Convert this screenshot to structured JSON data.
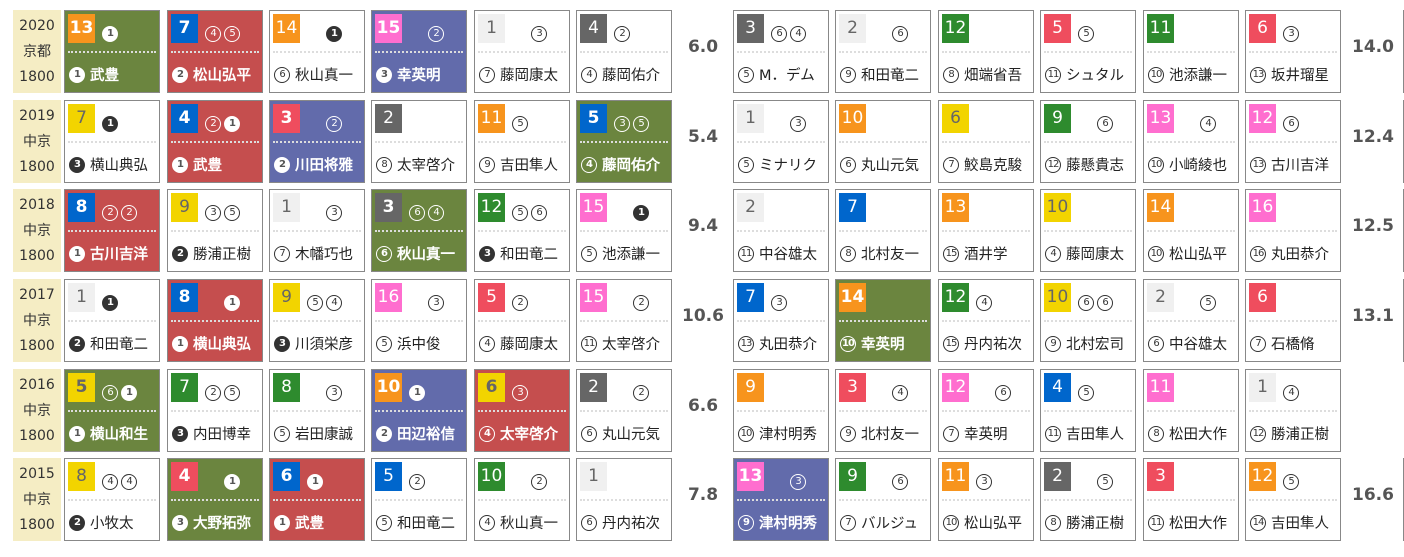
{
  "colors": {
    "white": "#f0f0f0",
    "black": "#666666",
    "red": "#ef4d5e",
    "blue": "#0066cc",
    "yellow": "#f2d400",
    "green": "#2e8b2e",
    "orange": "#f7941d",
    "pink": "#ff6ecf",
    "hl_green": "#6b853f",
    "hl_red": "#c54e4e",
    "hl_blue": "#626bab",
    "year_bg": "#f5edc4"
  },
  "rows": [
    {
      "year": "2020",
      "venue": "京都",
      "distance": "1800",
      "odds_left": "6.0",
      "odds_right": "14.0",
      "partial": true,
      "left": [
        {
          "n": "13",
          "w": "orange",
          "m": [
            1,
            null
          ],
          "p": 1,
          "j": "武豊",
          "hl": "green"
        },
        {
          "n": "7",
          "w": "blue",
          "m": [
            4,
            5
          ],
          "p": 2,
          "j": "松山弘平",
          "hl": "red"
        },
        {
          "n": "14",
          "w": "orange",
          "m": [
            null,
            1
          ],
          "p": 6,
          "j": "秋山真一",
          "hl": null
        },
        {
          "n": "15",
          "w": "pink",
          "m": [
            null,
            2
          ],
          "p": 3,
          "j": "幸英明",
          "hl": "blue"
        },
        {
          "n": "1",
          "w": "white",
          "m": [
            null,
            3
          ],
          "p": 7,
          "j": "藤岡康太",
          "hl": null
        },
        {
          "n": "4",
          "w": "black",
          "m": [
            2,
            null
          ],
          "p": 4,
          "j": "藤岡佑介",
          "hl": null
        }
      ],
      "right": [
        {
          "n": "3",
          "w": "black",
          "m": [
            6,
            4
          ],
          "p": 5,
          "j": "M．デム",
          "hl": null
        },
        {
          "n": "2",
          "w": "white",
          "m": [
            null,
            6
          ],
          "p": 9,
          "j": "和田竜二",
          "hl": null
        },
        {
          "n": "12",
          "w": "green",
          "m": [
            null,
            null
          ],
          "p": 8,
          "j": "畑端省吾",
          "hl": null
        },
        {
          "n": "5",
          "w": "red",
          "m": [
            5,
            null
          ],
          "p": 11,
          "j": "シュタル",
          "hl": null
        },
        {
          "n": "11",
          "w": "green",
          "m": [
            null,
            null
          ],
          "p": 10,
          "j": "池添謙一",
          "hl": null
        },
        {
          "n": "6",
          "w": "red",
          "m": [
            3,
            null
          ],
          "p": 13,
          "j": "坂井瑠星",
          "hl": null
        }
      ]
    },
    {
      "year": "2019",
      "venue": "中京",
      "distance": "1800",
      "odds_left": "5.4",
      "odds_right": "12.4",
      "partial": true,
      "left": [
        {
          "n": "7",
          "w": "yellow",
          "m": [
            1,
            null
          ],
          "p": 3,
          "j": "横山典弘",
          "hl": null
        },
        {
          "n": "4",
          "w": "blue",
          "m": [
            2,
            1
          ],
          "p": 1,
          "j": "武豊",
          "hl": "red"
        },
        {
          "n": "3",
          "w": "red",
          "m": [
            null,
            2
          ],
          "p": 2,
          "j": "川田将雅",
          "hl": "blue"
        },
        {
          "n": "2",
          "w": "black",
          "m": [
            null,
            null
          ],
          "p": 8,
          "j": "太宰啓介",
          "hl": null
        },
        {
          "n": "11",
          "w": "orange",
          "m": [
            5,
            null
          ],
          "p": 9,
          "j": "吉田隼人",
          "hl": null
        },
        {
          "n": "5",
          "w": "blue",
          "m": [
            3,
            5
          ],
          "p": 4,
          "j": "藤岡佑介",
          "hl": "green"
        }
      ],
      "right": [
        {
          "n": "1",
          "w": "white",
          "m": [
            null,
            3
          ],
          "p": 5,
          "j": "ミナリク",
          "hl": null
        },
        {
          "n": "10",
          "w": "orange",
          "m": [
            null,
            null
          ],
          "p": 6,
          "j": "丸山元気",
          "hl": null
        },
        {
          "n": "6",
          "w": "yellow",
          "m": [
            null,
            null
          ],
          "p": 7,
          "j": "鮫島克駿",
          "hl": null
        },
        {
          "n": "9",
          "w": "green",
          "m": [
            null,
            6
          ],
          "p": 12,
          "j": "藤懸貴志",
          "hl": null
        },
        {
          "n": "13",
          "w": "pink",
          "m": [
            null,
            4
          ],
          "p": 10,
          "j": "小崎綾也",
          "hl": null
        },
        {
          "n": "12",
          "w": "pink",
          "m": [
            6,
            null
          ],
          "p": 13,
          "j": "古川吉洋",
          "hl": null
        }
      ]
    },
    {
      "year": "2018",
      "venue": "中京",
      "distance": "1800",
      "odds_left": "9.4",
      "odds_right": "12.5",
      "partial": true,
      "left": [
        {
          "n": "8",
          "w": "blue",
          "m": [
            2,
            2
          ],
          "p": 1,
          "j": "古川吉洋",
          "hl": "red"
        },
        {
          "n": "9",
          "w": "yellow",
          "m": [
            3,
            5
          ],
          "p": 2,
          "j": "勝浦正樹",
          "hl": null
        },
        {
          "n": "1",
          "w": "white",
          "m": [
            null,
            3
          ],
          "p": 7,
          "j": "木幡巧也",
          "hl": null
        },
        {
          "n": "3",
          "w": "black",
          "m": [
            6,
            4
          ],
          "p": 6,
          "j": "秋山真一",
          "hl": "green"
        },
        {
          "n": "12",
          "w": "green",
          "m": [
            5,
            6
          ],
          "p": 3,
          "j": "和田竜二",
          "hl": null
        },
        {
          "n": "15",
          "w": "pink",
          "m": [
            null,
            1
          ],
          "p": 5,
          "j": "池添謙一",
          "hl": null
        }
      ],
      "right": [
        {
          "n": "2",
          "w": "white",
          "m": [
            null,
            null
          ],
          "p": 11,
          "j": "中谷雄太",
          "hl": null
        },
        {
          "n": "7",
          "w": "blue",
          "m": [
            null,
            null
          ],
          "p": 8,
          "j": "北村友一",
          "hl": null
        },
        {
          "n": "13",
          "w": "orange",
          "m": [
            null,
            null
          ],
          "p": 15,
          "j": "酒井学",
          "hl": null
        },
        {
          "n": "10",
          "w": "yellow",
          "m": [
            null,
            null
          ],
          "p": 4,
          "j": "藤岡康太",
          "hl": null
        },
        {
          "n": "14",
          "w": "orange",
          "m": [
            null,
            null
          ],
          "p": 10,
          "j": "松山弘平",
          "hl": null
        },
        {
          "n": "16",
          "w": "pink",
          "m": [
            null,
            null
          ],
          "p": 16,
          "j": "丸田恭介",
          "hl": null
        }
      ]
    },
    {
      "year": "2017",
      "venue": "中京",
      "distance": "1800",
      "odds_left": "10.6",
      "odds_right": "13.1",
      "partial": true,
      "left": [
        {
          "n": "1",
          "w": "white",
          "m": [
            1,
            null
          ],
          "p": 2,
          "j": "和田竜二",
          "hl": null
        },
        {
          "n": "8",
          "w": "blue",
          "m": [
            null,
            1
          ],
          "p": 1,
          "j": "横山典弘",
          "hl": "red"
        },
        {
          "n": "9",
          "w": "yellow",
          "m": [
            5,
            4
          ],
          "p": 3,
          "j": "川須栄彦",
          "hl": null
        },
        {
          "n": "16",
          "w": "pink",
          "m": [
            null,
            3
          ],
          "p": 5,
          "j": "浜中俊",
          "hl": null
        },
        {
          "n": "5",
          "w": "red",
          "m": [
            2,
            null
          ],
          "p": 4,
          "j": "藤岡康太",
          "hl": null
        },
        {
          "n": "15",
          "w": "pink",
          "m": [
            null,
            2
          ],
          "p": 11,
          "j": "太宰啓介",
          "hl": null
        }
      ],
      "right": [
        {
          "n": "7",
          "w": "blue",
          "m": [
            3,
            null
          ],
          "p": 13,
          "j": "丸田恭介",
          "hl": null
        },
        {
          "n": "14",
          "w": "orange",
          "m": [
            null,
            null
          ],
          "p": 10,
          "j": "幸英明",
          "hl": "green"
        },
        {
          "n": "12",
          "w": "green",
          "m": [
            4,
            null
          ],
          "p": 15,
          "j": "丹内祐次",
          "hl": null
        },
        {
          "n": "10",
          "w": "yellow",
          "m": [
            6,
            6
          ],
          "p": 9,
          "j": "北村宏司",
          "hl": null
        },
        {
          "n": "2",
          "w": "white",
          "m": [
            null,
            5
          ],
          "p": 6,
          "j": "中谷雄太",
          "hl": null
        },
        {
          "n": "6",
          "w": "red",
          "m": [
            null,
            null
          ],
          "p": 7,
          "j": "石橋脩",
          "hl": null
        }
      ]
    },
    {
      "year": "2016",
      "venue": "中京",
      "distance": "1800",
      "odds_left": "6.6",
      "odds_right": "",
      "partial": false,
      "left": [
        {
          "n": "5",
          "w": "yellow",
          "m": [
            6,
            1
          ],
          "p": 1,
          "j": "横山和生",
          "hl": "green"
        },
        {
          "n": "7",
          "w": "green",
          "m": [
            2,
            5
          ],
          "p": 3,
          "j": "内田博幸",
          "hl": null
        },
        {
          "n": "8",
          "w": "green",
          "m": [
            null,
            3
          ],
          "p": 5,
          "j": "岩田康誠",
          "hl": null
        },
        {
          "n": "10",
          "w": "orange",
          "m": [
            1,
            null
          ],
          "p": 2,
          "j": "田辺裕信",
          "hl": "blue"
        },
        {
          "n": "6",
          "w": "yellow",
          "m": [
            3,
            null
          ],
          "p": 4,
          "j": "太宰啓介",
          "hl": "red"
        },
        {
          "n": "2",
          "w": "black",
          "m": [
            null,
            2
          ],
          "p": 6,
          "j": "丸山元気",
          "hl": null
        }
      ],
      "right": [
        {
          "n": "9",
          "w": "orange",
          "m": [
            null,
            null
          ],
          "p": 10,
          "j": "津村明秀",
          "hl": null
        },
        {
          "n": "3",
          "w": "red",
          "m": [
            null,
            4
          ],
          "p": 9,
          "j": "北村友一",
          "hl": null
        },
        {
          "n": "12",
          "w": "pink",
          "m": [
            null,
            6
          ],
          "p": 7,
          "j": "幸英明",
          "hl": null
        },
        {
          "n": "4",
          "w": "blue",
          "m": [
            5,
            null
          ],
          "p": 11,
          "j": "吉田隼人",
          "hl": null
        },
        {
          "n": "11",
          "w": "pink",
          "m": [
            null,
            null
          ],
          "p": 8,
          "j": "松田大作",
          "hl": null
        },
        {
          "n": "1",
          "w": "white",
          "m": [
            4,
            null
          ],
          "p": 12,
          "j": "勝浦正樹",
          "hl": null
        }
      ]
    },
    {
      "year": "2015",
      "venue": "中京",
      "distance": "1800",
      "odds_left": "7.8",
      "odds_right": "16.6",
      "partial": true,
      "left": [
        {
          "n": "8",
          "w": "yellow",
          "m": [
            4,
            4
          ],
          "p": 2,
          "j": "小牧太",
          "hl": null
        },
        {
          "n": "4",
          "w": "red",
          "m": [
            null,
            1
          ],
          "p": 3,
          "j": "大野拓弥",
          "hl": "green"
        },
        {
          "n": "6",
          "w": "blue",
          "m": [
            1,
            null
          ],
          "p": 1,
          "j": "武豊",
          "hl": "red"
        },
        {
          "n": "5",
          "w": "blue",
          "m": [
            2,
            null
          ],
          "p": 5,
          "j": "和田竜二",
          "hl": null
        },
        {
          "n": "10",
          "w": "green",
          "m": [
            null,
            2
          ],
          "p": 4,
          "j": "秋山真一",
          "hl": null
        },
        {
          "n": "1",
          "w": "white",
          "m": [
            null,
            null
          ],
          "p": 6,
          "j": "丹内祐次",
          "hl": null
        }
      ],
      "right": [
        {
          "n": "13",
          "w": "pink",
          "m": [
            null,
            3
          ],
          "p": 9,
          "j": "津村明秀",
          "hl": "blue"
        },
        {
          "n": "9",
          "w": "green",
          "m": [
            null,
            6
          ],
          "p": 7,
          "j": "バルジュ",
          "hl": null
        },
        {
          "n": "11",
          "w": "orange",
          "m": [
            3,
            null
          ],
          "p": 10,
          "j": "松山弘平",
          "hl": null
        },
        {
          "n": "2",
          "w": "black",
          "m": [
            null,
            5
          ],
          "p": 8,
          "j": "勝浦正樹",
          "hl": null
        },
        {
          "n": "3",
          "w": "red",
          "m": [
            null,
            null
          ],
          "p": 11,
          "j": "松田大作",
          "hl": null
        },
        {
          "n": "12",
          "w": "orange",
          "m": [
            5,
            null
          ],
          "p": 14,
          "j": "吉田隼人",
          "hl": null
        }
      ]
    }
  ]
}
